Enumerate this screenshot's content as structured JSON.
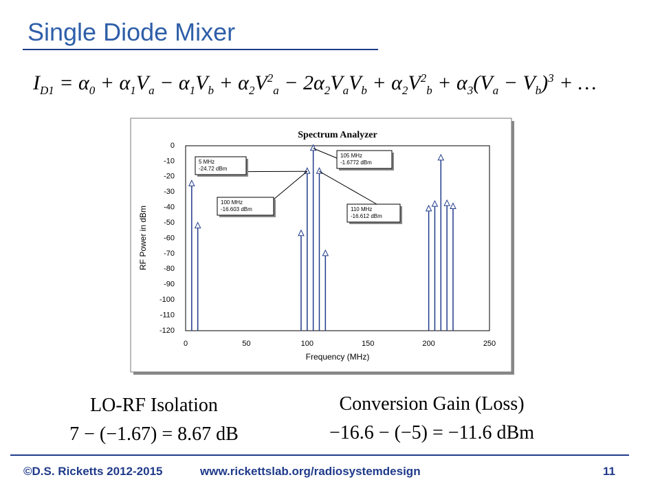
{
  "slide_title": "Single Diode Mixer",
  "equation": [
    {
      "text": "I",
      "sub": "D1"
    },
    {
      "text": " = α",
      "sub": "0"
    },
    {
      "text": " + α",
      "sub": "1"
    },
    {
      "text": "V",
      "sub": "a"
    },
    {
      "text": " − α",
      "sub": "1"
    },
    {
      "text": "V",
      "sub": "b"
    },
    {
      "text": " + α",
      "sub": "2"
    },
    {
      "text": "V",
      "sub": "a",
      "sup": "2"
    },
    {
      "text": " − 2α",
      "sub": "2"
    },
    {
      "text": "V",
      "sub": "a"
    },
    {
      "text": "V",
      "sub": "b"
    },
    {
      "text": " + α",
      "sub": "2"
    },
    {
      "text": "V",
      "sub": "b",
      "sup": "2"
    },
    {
      "text": " + α",
      "sub": "3"
    },
    {
      "text": "(V",
      "sub": "a"
    },
    {
      "text": " − V",
      "sub": "b"
    },
    {
      "text": ")",
      "sup": "3"
    },
    {
      "text": " + …"
    }
  ],
  "chart_data": {
    "type": "stem",
    "title": "Spectrum Analyzer",
    "x_label": "Frequency (MHz)",
    "y_label": "RF Power in dBm",
    "series": [
      {
        "name": "Spectrum",
        "color": "#1f3a8a",
        "x": [
          5,
          10,
          95,
          100,
          105,
          110,
          115,
          200,
          205,
          210,
          215,
          220
        ],
        "values": [
          -24.72,
          -52,
          -57,
          -16.603,
          -1.6772,
          -16.612,
          -70,
          -41,
          -38,
          -8,
          -37.5,
          -39.5
        ]
      }
    ],
    "xlim": [
      0,
      250
    ],
    "xticks": [
      0,
      50,
      100,
      150,
      200,
      250
    ],
    "ylim": [
      -120,
      0
    ],
    "yticks": [
      0,
      -10,
      -20,
      -30,
      -40,
      -50,
      -60,
      -70,
      -80,
      -90,
      -100,
      -110,
      -120
    ],
    "grid": false,
    "annotations": [
      {
        "freq": "5 MHz",
        "power": "-24.72 dBm"
      },
      {
        "freq": "100 MHz",
        "power": "-16.603 dBm"
      },
      {
        "freq": "105 MHz",
        "power": "-1.6772 dBm"
      },
      {
        "freq": "110 MHz",
        "power": "-16.612 dBm"
      }
    ]
  },
  "results": [
    {
      "title": "LO-RF Isolation",
      "formula": "7 − (−1.67) = 8.67 dB"
    },
    {
      "title": "Conversion Gain (Loss)",
      "formula": "−16.6 − (−5) = −11.6 dBm"
    }
  ],
  "footer": {
    "copyright": "©D.S. Ricketts 2012-2015",
    "url": "www.rickettslab.org/radiosystemdesign",
    "page": "11"
  }
}
